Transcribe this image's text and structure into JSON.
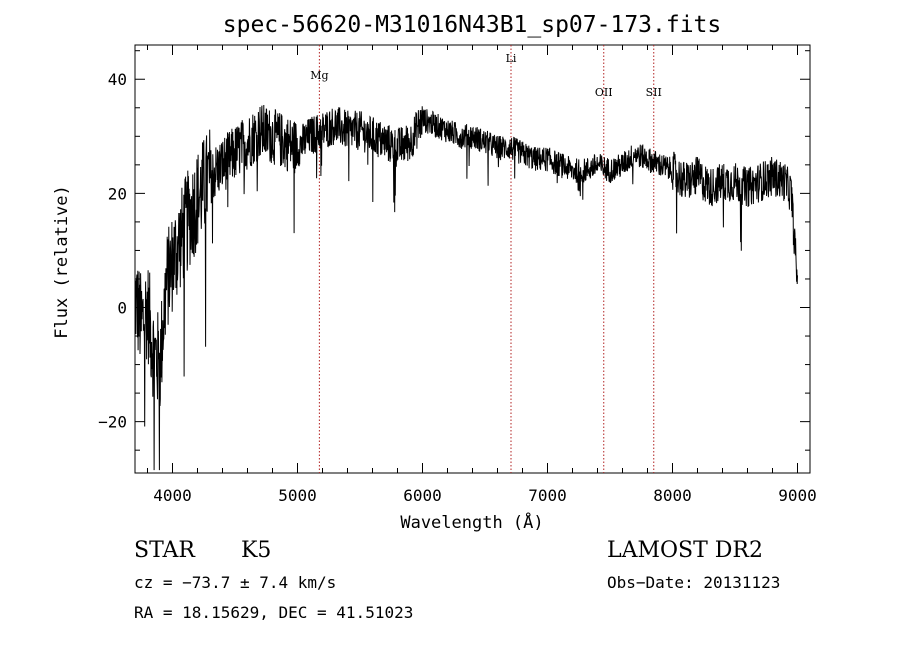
{
  "chart_data": {
    "type": "line",
    "title": "spec-56620-M31016N43B1_sp07-173.fits",
    "xlabel": "Wavelength (Å)",
    "ylabel": "Flux (relative)",
    "xlim": [
      3700,
      9100
    ],
    "ylim": [
      -29,
      46
    ],
    "xticks": [
      4000,
      5000,
      6000,
      7000,
      8000,
      9000
    ],
    "yticks": [
      -20,
      0,
      20,
      40
    ],
    "ytick_labels": [
      "−20",
      "0",
      "20",
      "40"
    ],
    "grid": false,
    "line_color": "#000000",
    "marker_color": "#b22222",
    "series": [
      {
        "x": [
          3700,
          3750,
          3800,
          3850,
          3900,
          3950,
          4000,
          4100,
          4200,
          4300,
          4400,
          4500,
          4600,
          4700,
          4800,
          4900,
          5000,
          5100,
          5200,
          5300,
          5400,
          5500,
          5600,
          5700,
          5800,
          5900,
          6000,
          6100,
          6200,
          6300,
          6400,
          6500,
          6600,
          6700,
          6800,
          6900,
          7000,
          7100,
          7200,
          7300,
          7400,
          7500,
          7600,
          7700,
          7800,
          7900,
          8000,
          8100,
          8200,
          8300,
          8400,
          8500,
          8600,
          8700,
          8800,
          8900,
          8950,
          9000
        ],
        "y": [
          2,
          -3,
          0,
          -8,
          -10,
          4,
          8,
          14,
          19,
          23,
          25,
          27,
          29,
          31,
          30,
          29,
          28,
          30,
          31,
          32,
          31,
          31,
          30,
          29,
          28,
          29,
          33,
          32,
          31,
          30,
          30,
          29,
          28,
          28,
          27,
          26,
          26,
          25,
          24,
          24,
          25,
          24,
          25,
          27,
          26,
          25,
          24,
          22,
          23,
          21,
          22,
          22,
          21,
          22,
          23,
          22,
          20,
          4
        ]
      }
    ],
    "line_markers": [
      {
        "label": "Mg",
        "x": 5175
      },
      {
        "label": "Li",
        "x": 6708
      },
      {
        "label": "OII",
        "x": 7450
      },
      {
        "label": "SII",
        "x": 7850
      }
    ]
  },
  "info": {
    "class": "STAR",
    "subclass": "K5",
    "survey": "LAMOST DR2",
    "cz": "cz = −73.7 ± 7.4 km/s",
    "obs_date": "Obs−Date: 20131123",
    "coords": "RA =  18.15629, DEC =  41.51023"
  }
}
